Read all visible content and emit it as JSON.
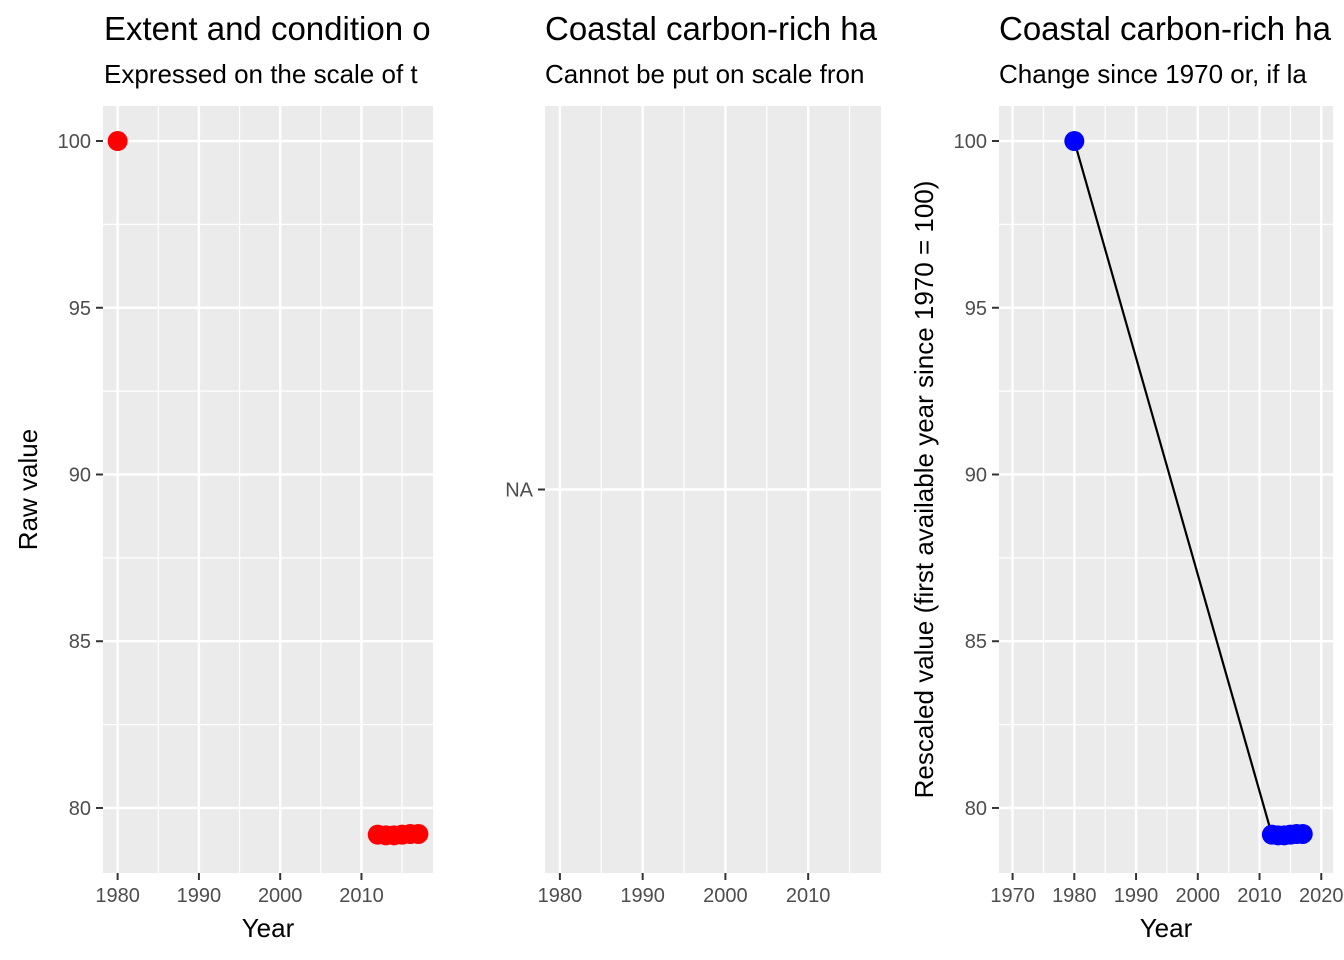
{
  "chart_data": [
    {
      "type": "scatter",
      "title": "Extent and condition o",
      "subtitle": "Expressed on the scale of t",
      "xlabel": "Year",
      "ylabel": "Raw value",
      "xticks": [
        1980,
        1990,
        2000,
        2010
      ],
      "yticks": [
        80,
        85,
        90,
        95,
        100
      ],
      "xlim": [
        1978.2,
        2018.8
      ],
      "ylim": [
        78.05,
        101.05
      ],
      "grid": true,
      "point_color": "#FF0000",
      "x": [
        1980,
        2012,
        2013,
        2014,
        2015,
        2016,
        2017
      ],
      "y": [
        100,
        79.2,
        79.18,
        79.18,
        79.2,
        79.22,
        79.22
      ]
    },
    {
      "type": "scatter",
      "title": "Coastal carbon-rich ha",
      "subtitle": "Cannot be put on scale fron",
      "xlabel": "",
      "ylabel": "",
      "xticks": [
        1980,
        1990,
        2000,
        2010
      ],
      "yticks": [
        "NA"
      ],
      "xlim": [
        1978.2,
        2018.8
      ],
      "grid": true,
      "x": [],
      "y": []
    },
    {
      "type": "line",
      "title": "Coastal carbon-rich ha",
      "subtitle": "Change since 1970 or, if la",
      "xlabel": "Year",
      "ylabel": "Rescaled value (first available year since 1970 = 100)",
      "xticks": [
        1970,
        1980,
        1990,
        2000,
        2010,
        2020
      ],
      "yticks": [
        80,
        85,
        90,
        95,
        100
      ],
      "xlim": [
        1967.8,
        2021.9
      ],
      "ylim": [
        78.05,
        101.05
      ],
      "grid": true,
      "point_color": "#0000FF",
      "line_color": "#000000",
      "x": [
        1980,
        2012,
        2013,
        2014,
        2015,
        2016,
        2017
      ],
      "y": [
        100,
        79.2,
        79.18,
        79.18,
        79.2,
        79.22,
        79.22
      ]
    }
  ]
}
